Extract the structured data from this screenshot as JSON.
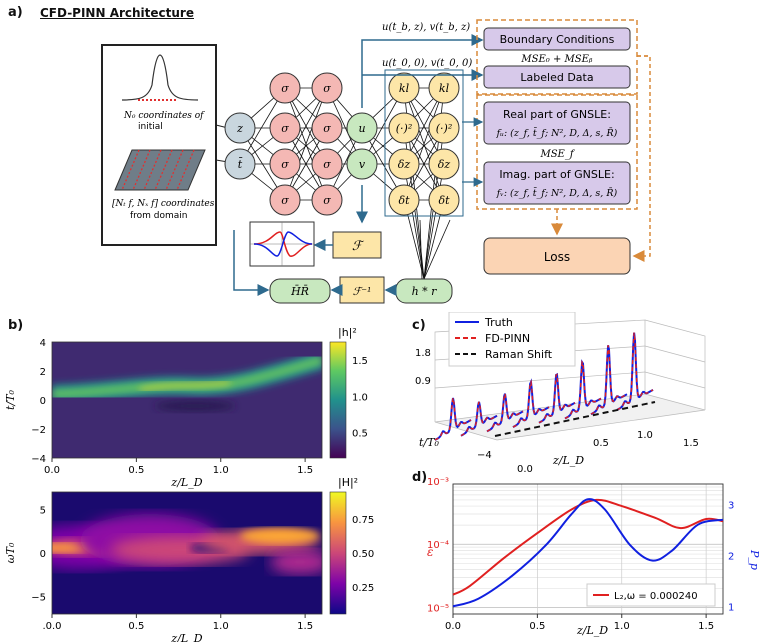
{
  "panel_labels": {
    "a": "a)",
    "b": "b)",
    "c": "c)",
    "d": "d)"
  },
  "architecture": {
    "title": "CFD-PINN Architecture",
    "init_text": [
      "N₀ coordinates of",
      "initial"
    ],
    "domain_text": [
      "[Nₜ f, Nₓ f] coordinates",
      "from domain"
    ],
    "inputs": [
      "z",
      "t̄"
    ],
    "hidden_symbol": "σ",
    "outputs": [
      "u",
      "v"
    ],
    "deriv_col1": [
      "kl",
      "(·)²",
      "δz",
      "δt"
    ],
    "deriv_col2": [
      "kl",
      "(·)²",
      "δz",
      "δt"
    ],
    "fourier": "ℱ",
    "inverse_fourier": "ℱ⁻¹",
    "hr_box": "H̄R̄",
    "conv_box": "h * r",
    "bc_input": "u(t_b, z), v(t_b, z)",
    "ld_input": "u(t_0, 0), v(t_0, 0)",
    "boxes": {
      "bc": "Boundary Conditions",
      "ld": "Labeled Data",
      "mse0b": "MSE₀ + MSEᵦ",
      "real_title": "Real part of GNSLE:",
      "real_eq": "fᵤ: (z_f, t̄_f; N², D, Δ, s, R̄)",
      "msef": "MSE_f",
      "imag_title": "Imag. part of GNSLE:",
      "imag_eq": "fᵥ: (z_f, t̄_f; N², D, Δ, s, R̄)",
      "loss": "Loss"
    }
  },
  "colors": {
    "red_node": "#f4b8b4",
    "yellow_node": "#fde6a8",
    "green_node": "#c8e8bf",
    "gray_node": "#c9d6de",
    "purple_box": "#d7c9ea",
    "orange_box": "#fbd4b4",
    "arrow_blue": "#2e6a8e",
    "dash_orange": "#d98a3a"
  },
  "chart_data": [
    {
      "type": "heatmap",
      "panel": "b-top",
      "xlabel": "z/L_D",
      "ylabel": "t/T₀",
      "xlim": [
        0,
        1.6
      ],
      "ylim": [
        -4,
        4
      ],
      "xticks": [
        "0.0",
        "0.5",
        "1.0",
        "1.5"
      ],
      "yticks": [
        "4",
        "2",
        "0",
        "−2",
        "−4"
      ],
      "colorbar_label": "|h|²",
      "colorbar_ticks": [
        "1.5",
        "1.0",
        "0.5"
      ],
      "colormap": "viridis",
      "peak_track": [
        [
          0,
          0
        ],
        [
          0.6,
          0.3
        ],
        [
          1.0,
          0.4
        ],
        [
          1.6,
          1.8
        ]
      ]
    },
    {
      "type": "heatmap",
      "panel": "b-bottom",
      "xlabel": "z/L_D",
      "ylabel": "ωT₀",
      "xlim": [
        0,
        1.6
      ],
      "ylim": [
        -7,
        7
      ],
      "xticks": [
        ".0.0",
        "0.5",
        "1.0",
        "1.5"
      ],
      "yticks": [
        "5",
        "0",
        "−5"
      ],
      "colorbar_label": "|H|²",
      "colorbar_ticks": [
        "0.75",
        "0.50",
        "0.25"
      ],
      "colormap": "plasma"
    },
    {
      "type": "line",
      "panel": "c",
      "legend": [
        "Truth",
        "FD-PINN",
        "Raman Shift"
      ],
      "zticks": [
        "1.8",
        "0.9"
      ],
      "tlabel": "t/T₀",
      "tticks": [
        "−4",
        "0.0"
      ],
      "xlabel": "z/L_D",
      "xticks": [
        "0.5",
        "1.0",
        "1.5"
      ],
      "peak_heights": [
        0.8,
        0.6,
        0.7,
        0.9,
        1.0,
        1.2,
        1.5,
        1.7
      ]
    },
    {
      "type": "line",
      "panel": "d",
      "xlabel": "z/L_D",
      "xlim": [
        0,
        1.6
      ],
      "xticks": [
        "0.0",
        "0.5",
        "1.0",
        "1.5"
      ],
      "ylabel_left": "ε",
      "ylabel_right": "P_p",
      "left_log": true,
      "left_ticks": [
        "10⁻³",
        "10⁻⁴",
        "10⁻⁵"
      ],
      "right_ticks": [
        "3",
        "2",
        "1"
      ],
      "legend": "L₂,ω = 0.000240",
      "series": [
        {
          "axis": "left",
          "color": "#e02020",
          "points": [
            [
              0,
              1.6e-05
            ],
            [
              0.1,
              2.2e-05
            ],
            [
              0.3,
              6e-05
            ],
            [
              0.5,
              0.00015
            ],
            [
              0.7,
              0.00035
            ],
            [
              0.85,
              0.0005
            ],
            [
              1.0,
              0.0004
            ],
            [
              1.2,
              0.00026
            ],
            [
              1.35,
              0.00018
            ],
            [
              1.5,
              0.00025
            ],
            [
              1.6,
              0.00023
            ]
          ]
        },
        {
          "axis": "right",
          "color": "#1020e0",
          "points": [
            [
              0,
              1.0
            ],
            [
              0.15,
              1.15
            ],
            [
              0.35,
              1.6
            ],
            [
              0.55,
              2.2
            ],
            [
              0.7,
              2.8
            ],
            [
              0.8,
              3.1
            ],
            [
              0.9,
              2.9
            ],
            [
              1.05,
              2.2
            ],
            [
              1.18,
              1.9
            ],
            [
              1.3,
              2.1
            ],
            [
              1.45,
              2.6
            ],
            [
              1.6,
              2.7
            ]
          ]
        }
      ]
    }
  ]
}
